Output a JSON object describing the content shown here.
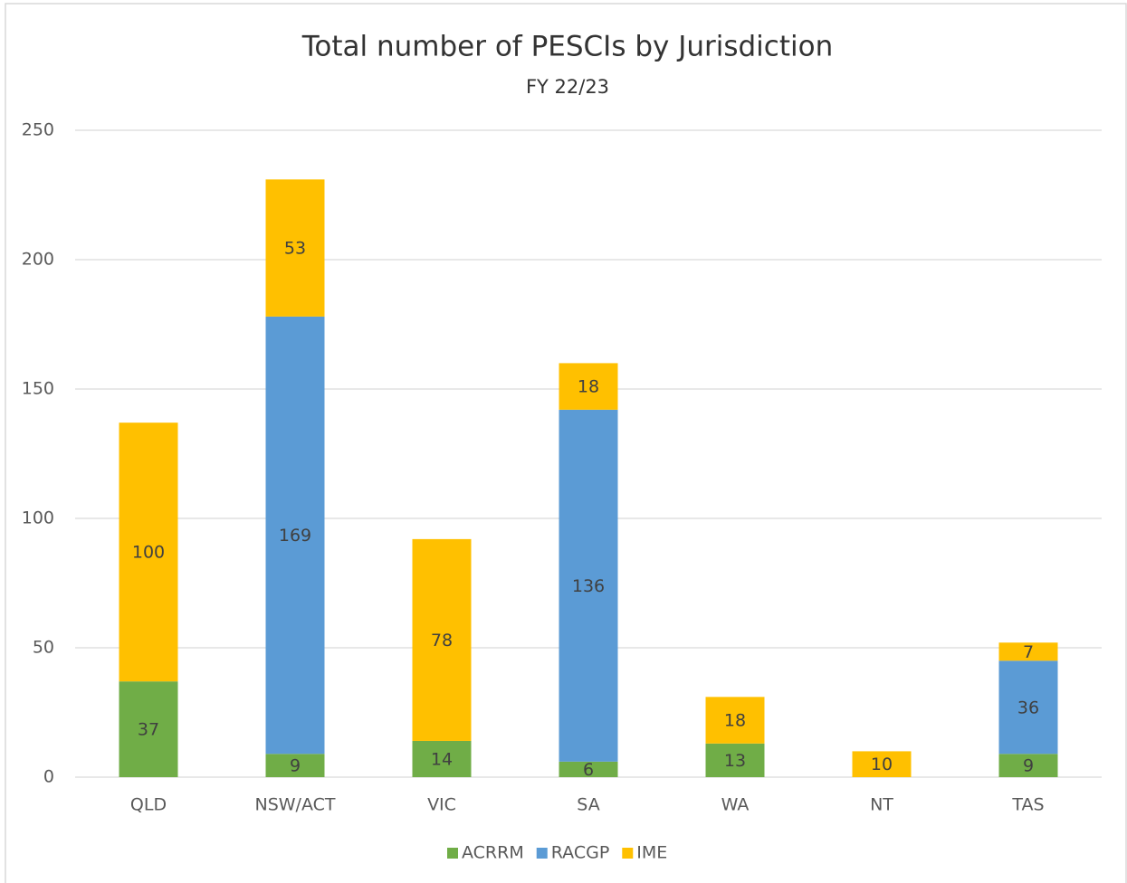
{
  "chart_data": {
    "type": "stacked-bar",
    "title": "Total number of PESCIs by Jurisdiction",
    "subtitle": "FY 22/23",
    "categories": [
      "QLD",
      "NSW/ACT",
      "VIC",
      "SA",
      "WA",
      "NT",
      "TAS"
    ],
    "series": [
      {
        "name": "ACRRM",
        "color": "#70ad47",
        "values": [
          37,
          9,
          14,
          6,
          13,
          null,
          9
        ]
      },
      {
        "name": "RACGP",
        "color": "#5b9bd5",
        "values": [
          null,
          169,
          null,
          136,
          null,
          null,
          36
        ]
      },
      {
        "name": "IME",
        "color": "#ffc000",
        "values": [
          100,
          53,
          78,
          18,
          18,
          10,
          7
        ]
      }
    ],
    "ylim": [
      0,
      250
    ],
    "yticks": [
      0,
      50,
      100,
      150,
      200,
      250
    ],
    "grid": true,
    "legend": "bottom"
  }
}
